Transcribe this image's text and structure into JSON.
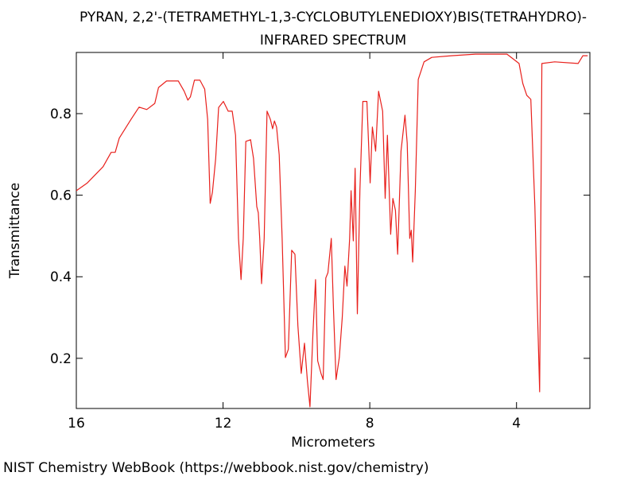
{
  "chart_data": {
    "type": "line",
    "title": "PYRAN, 2,2'-(TETRAMETHYL-1,3-CYCLOBUTYLENEDIOXY)BIS(TETRAHYDRO)-",
    "subtitle": "INFRARED SPECTRUM",
    "x_label": "Micrometers",
    "y_label": "Transmittance",
    "source": "NIST Chemistry WebBook (https://webbook.nist.gov/chemistry)",
    "xlim": [
      16,
      2
    ],
    "ylim": [
      0.077,
      0.95
    ],
    "xticks": [
      16,
      12,
      8,
      4
    ],
    "yticks": [
      0.2,
      0.4,
      0.6,
      0.8
    ],
    "series": [
      {
        "color": "#e8201c",
        "x": [
          16,
          15.7,
          15.27,
          15.05,
          14.94,
          14.83,
          14.51,
          14.29,
          14.08,
          13.86,
          13.76,
          13.54,
          13.22,
          13.06,
          12.96,
          12.89,
          12.78,
          12.63,
          12.5,
          12.42,
          12.35,
          12.29,
          12.2,
          12.12,
          11.99,
          11.86,
          11.75,
          11.66,
          11.58,
          11.51,
          11.45,
          11.38,
          11.25,
          11.17,
          11.08,
          11.04,
          11.0,
          10.95,
          10.88,
          10.8,
          10.71,
          10.65,
          10.6,
          10.54,
          10.47,
          10.39,
          10.3,
          10.22,
          10.13,
          10.04,
          9.96,
          9.87,
          9.78,
          9.7,
          9.63,
          9.55,
          9.48,
          9.42,
          9.33,
          9.27,
          9.2,
          9.14,
          9.05,
          8.99,
          8.92,
          8.83,
          8.75,
          8.68,
          8.62,
          8.55,
          8.51,
          8.45,
          8.4,
          8.34,
          8.27,
          8.19,
          8.08,
          7.99,
          7.93,
          7.84,
          7.76,
          7.65,
          7.58,
          7.52,
          7.43,
          7.37,
          7.3,
          7.24,
          7.15,
          7.04,
          6.98,
          6.91,
          6.87,
          6.83,
          6.76,
          6.68,
          6.52,
          6.31,
          5.77,
          5.12,
          4.26,
          3.93,
          3.83,
          3.72,
          3.61,
          3.5,
          3.44,
          3.37,
          3.31,
          2.96,
          2.32,
          2.19,
          2.06
        ],
        "values": [
          0.611,
          0.63,
          0.67,
          0.705,
          0.705,
          0.74,
          0.786,
          0.816,
          0.81,
          0.825,
          0.864,
          0.88,
          0.88,
          0.855,
          0.833,
          0.841,
          0.882,
          0.882,
          0.86,
          0.786,
          0.58,
          0.607,
          0.69,
          0.815,
          0.83,
          0.806,
          0.806,
          0.747,
          0.494,
          0.393,
          0.494,
          0.732,
          0.736,
          0.69,
          0.572,
          0.557,
          0.494,
          0.383,
          0.494,
          0.806,
          0.786,
          0.763,
          0.782,
          0.767,
          0.699,
          0.494,
          0.202,
          0.222,
          0.465,
          0.455,
          0.28,
          0.163,
          0.237,
          0.144,
          0.081,
          0.26,
          0.393,
          0.194,
          0.163,
          0.148,
          0.397,
          0.41,
          0.494,
          0.319,
          0.148,
          0.202,
          0.3,
          0.426,
          0.377,
          0.494,
          0.611,
          0.488,
          0.666,
          0.309,
          0.611,
          0.83,
          0.83,
          0.63,
          0.767,
          0.708,
          0.855,
          0.806,
          0.592,
          0.747,
          0.504,
          0.592,
          0.563,
          0.455,
          0.708,
          0.796,
          0.728,
          0.494,
          0.514,
          0.436,
          0.611,
          0.884,
          0.927,
          0.938,
          0.942,
          0.946,
          0.946,
          0.923,
          0.874,
          0.845,
          0.835,
          0.572,
          0.348,
          0.118,
          0.923,
          0.927,
          0.923,
          0.942,
          0.942
        ]
      }
    ]
  }
}
